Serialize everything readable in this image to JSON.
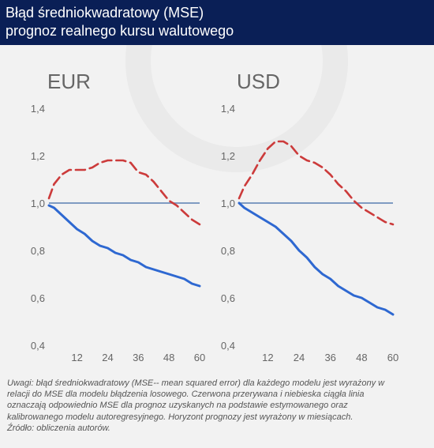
{
  "header": {
    "title_line1": "Błąd średniokwadratowy (MSE)",
    "title_line2": "prognoz realnego kursu walutowego"
  },
  "colors": {
    "header_bg": "#0a1f56",
    "background": "#f2f2f2",
    "red_dashed": "#cc3b3b",
    "blue_solid": "#2e68d1",
    "baseline": "#7f9bc2",
    "text": "#555555"
  },
  "notes": {
    "line1": "Uwagi: błąd średniokwadratowy (MSE-- mean squared error) dla każdego modelu jest wyrażony w",
    "line2": "relacji do MSE dla modelu błądzenia losowego. Czerwona przerywana i niebieska ciągła linia",
    "line3": "oznaczają odpowiednio MSE dla prognoz uzyskanych na podstawie estymowanego oraz",
    "line4": "kalibrowanego modelu autoregresyjnego. Horyzont prognozy jest wyrażony w miesiącach.",
    "line5": "Źródło: obliczenia autorów."
  },
  "chart_data": [
    {
      "type": "line",
      "title": "EUR",
      "x_ticks": [
        "12",
        "24",
        "36",
        "48",
        "60"
      ],
      "y_ticks": [
        "0,4",
        "0,6",
        "0,8",
        "1,0",
        "1,2",
        "1,4"
      ],
      "ylim": [
        0.4,
        1.4
      ],
      "xlim": [
        1,
        60
      ],
      "grid": false,
      "baseline": 1.0,
      "series": [
        {
          "style": "dashed-red",
          "x": [
            1,
            3,
            6,
            9,
            12,
            15,
            18,
            21,
            24,
            27,
            30,
            33,
            36,
            39,
            42,
            45,
            48,
            51,
            54,
            57,
            60
          ],
          "y": [
            1.02,
            1.08,
            1.12,
            1.14,
            1.14,
            1.14,
            1.15,
            1.17,
            1.18,
            1.18,
            1.18,
            1.17,
            1.13,
            1.12,
            1.09,
            1.05,
            1.01,
            0.99,
            0.96,
            0.93,
            0.91
          ]
        },
        {
          "style": "solid-blue",
          "x": [
            1,
            3,
            6,
            9,
            12,
            15,
            18,
            21,
            24,
            27,
            30,
            33,
            36,
            39,
            42,
            45,
            48,
            51,
            54,
            57,
            60
          ],
          "y": [
            0.99,
            0.98,
            0.95,
            0.92,
            0.89,
            0.87,
            0.84,
            0.82,
            0.81,
            0.79,
            0.78,
            0.76,
            0.75,
            0.73,
            0.72,
            0.71,
            0.7,
            0.69,
            0.68,
            0.66,
            0.65
          ]
        }
      ]
    },
    {
      "type": "line",
      "title": "USD",
      "x_ticks": [
        "12",
        "24",
        "36",
        "48",
        "60"
      ],
      "y_ticks": [
        "0,4",
        "0,6",
        "0,8",
        "1,0",
        "1,2",
        "1,4"
      ],
      "ylim": [
        0.4,
        1.4
      ],
      "xlim": [
        1,
        60
      ],
      "grid": false,
      "baseline": 1.0,
      "series": [
        {
          "style": "dashed-red",
          "x": [
            1,
            3,
            6,
            9,
            12,
            15,
            18,
            21,
            24,
            27,
            30,
            33,
            36,
            39,
            42,
            45,
            48,
            51,
            54,
            57,
            60
          ],
          "y": [
            1.02,
            1.07,
            1.12,
            1.18,
            1.23,
            1.26,
            1.26,
            1.24,
            1.2,
            1.18,
            1.17,
            1.15,
            1.12,
            1.08,
            1.05,
            1.01,
            0.98,
            0.96,
            0.94,
            0.92,
            0.91
          ]
        },
        {
          "style": "solid-blue",
          "x": [
            1,
            3,
            6,
            9,
            12,
            15,
            18,
            21,
            24,
            27,
            30,
            33,
            36,
            39,
            42,
            45,
            48,
            51,
            54,
            57,
            60
          ],
          "y": [
            1.0,
            0.98,
            0.96,
            0.94,
            0.92,
            0.9,
            0.87,
            0.84,
            0.8,
            0.77,
            0.73,
            0.7,
            0.68,
            0.65,
            0.63,
            0.61,
            0.6,
            0.58,
            0.56,
            0.55,
            0.53
          ]
        }
      ]
    }
  ]
}
